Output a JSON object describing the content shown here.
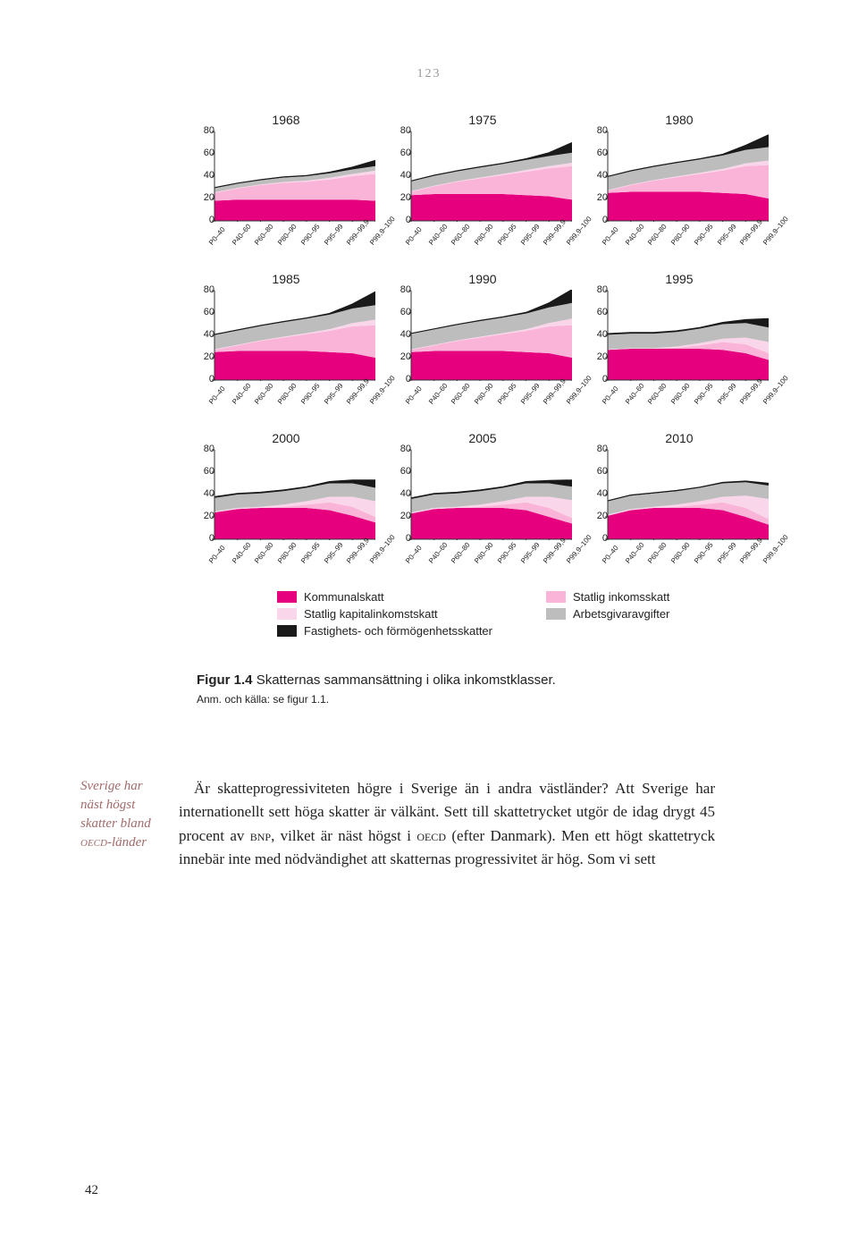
{
  "page_header": "123",
  "page_number": "42",
  "categories": [
    "P0–40",
    "P40–60",
    "P60–80",
    "P80–90",
    "P90–95",
    "P95–99",
    "P99–99,9",
    "P99,9–100"
  ],
  "y_ticks": [
    0,
    20,
    40,
    60,
    80
  ],
  "ylim_max": 80,
  "colors": {
    "kommunalskatt": "#e6007e",
    "statlig_inkomstskatt": "#f9b4d8",
    "statlig_kapital": "#fad6ea",
    "arbetsgivar": "#bdbdbd",
    "fastighets": "#1a1a1a",
    "axis": "#333",
    "bg": "#ffffff"
  },
  "charts": [
    {
      "year": "1968",
      "kommunal": [
        18,
        19,
        19,
        19,
        19,
        19,
        19,
        18
      ],
      "stat_ink": [
        7,
        10,
        13,
        15,
        16,
        18,
        21,
        24
      ],
      "stat_kap": [
        0.5,
        0.5,
        0.5,
        0.8,
        1,
        1.5,
        2,
        3
      ],
      "arbets": [
        4,
        4,
        4,
        4,
        4,
        4,
        4,
        4
      ],
      "fastighets": [
        0.3,
        0.3,
        0.3,
        0.5,
        0.5,
        1,
        2,
        5
      ]
    },
    {
      "year": "1975",
      "kommunal": [
        23,
        24,
        24,
        24,
        24,
        23,
        22,
        19
      ],
      "stat_ink": [
        3,
        7,
        11,
        14,
        17,
        21,
        25,
        30
      ],
      "stat_kap": [
        0.5,
        0.5,
        0.5,
        0.8,
        1,
        1.5,
        2,
        3
      ],
      "arbets": [
        9,
        9,
        9,
        9,
        9,
        9,
        9,
        9
      ],
      "fastighets": [
        0.3,
        0.3,
        0.3,
        0.5,
        0.5,
        1,
        3,
        9
      ]
    },
    {
      "year": "1980",
      "kommunal": [
        25,
        26,
        26,
        26,
        26,
        25,
        24,
        20
      ],
      "stat_ink": [
        2,
        6,
        10,
        13,
        16,
        20,
        25,
        30
      ],
      "stat_kap": [
        0.5,
        0.5,
        0.5,
        0.8,
        1,
        1.5,
        2.5,
        4
      ],
      "arbets": [
        12,
        12,
        12,
        12,
        12,
        12,
        12,
        12
      ],
      "fastighets": [
        0.3,
        0.3,
        0.3,
        0.5,
        0.5,
        1,
        4,
        11
      ]
    },
    {
      "year": "1985",
      "kommunal": [
        25,
        26,
        26,
        26,
        26,
        25,
        24,
        20
      ],
      "stat_ink": [
        2,
        5,
        9,
        12,
        15,
        19,
        24,
        29
      ],
      "stat_kap": [
        0.5,
        0.5,
        0.5,
        0.8,
        1,
        1.5,
        3,
        5
      ],
      "arbets": [
        13,
        13,
        13,
        13,
        13,
        13,
        13,
        13
      ],
      "fastighets": [
        0.3,
        0.3,
        0.3,
        0.5,
        0.5,
        1,
        4,
        12
      ]
    },
    {
      "year": "1990",
      "kommunal": [
        25,
        26,
        26,
        26,
        26,
        25,
        24,
        20
      ],
      "stat_ink": [
        2,
        5,
        9,
        12,
        15,
        19,
        24,
        29
      ],
      "stat_kap": [
        0.5,
        0.5,
        0.5,
        0.8,
        1,
        1.5,
        3,
        6
      ],
      "arbets": [
        14,
        14,
        14,
        14,
        14,
        14,
        14,
        14
      ],
      "fastighets": [
        0.3,
        0.3,
        0.3,
        0.5,
        0.5,
        1,
        4,
        12
      ]
    },
    {
      "year": "1995",
      "kommunal": [
        27,
        28,
        28,
        28,
        28,
        27,
        24,
        18
      ],
      "stat_ink": [
        0,
        0,
        0,
        1,
        3,
        7,
        8,
        6
      ],
      "stat_kap": [
        0.5,
        0.5,
        0.5,
        1,
        2,
        3,
        6,
        10
      ],
      "arbets": [
        13,
        13,
        13,
        13,
        13,
        13,
        13,
        13
      ],
      "fastighets": [
        1,
        1,
        1,
        1,
        1,
        1.5,
        3,
        8
      ]
    },
    {
      "year": "2000",
      "kommunal": [
        24,
        27,
        28,
        28,
        28,
        26,
        21,
        15
      ],
      "stat_ink": [
        0,
        0,
        0,
        1,
        3,
        7,
        8,
        5
      ],
      "stat_kap": [
        1,
        1,
        1,
        2,
        3,
        5,
        9,
        14
      ],
      "arbets": [
        12,
        12,
        12,
        12,
        12,
        12,
        12,
        12
      ],
      "fastighets": [
        1,
        1,
        1,
        1,
        1,
        1.5,
        3,
        7
      ]
    },
    {
      "year": "2005",
      "kommunal": [
        23,
        27,
        28,
        28,
        28,
        26,
        20,
        14
      ],
      "stat_ink": [
        0,
        0,
        0,
        1,
        3,
        7,
        8,
        5
      ],
      "stat_kap": [
        1,
        1,
        1,
        2,
        3,
        5,
        10,
        16
      ],
      "arbets": [
        12,
        12,
        12,
        12,
        12,
        12,
        12,
        12
      ],
      "fastighets": [
        1,
        1,
        1,
        1,
        1,
        1.5,
        2.5,
        6
      ]
    },
    {
      "year": "2010",
      "kommunal": [
        21,
        26,
        28,
        28,
        28,
        26,
        20,
        13
      ],
      "stat_ink": [
        0,
        0,
        0,
        1,
        3,
        7,
        8,
        5
      ],
      "stat_kap": [
        1,
        1,
        1,
        2,
        3,
        5,
        11,
        18
      ],
      "arbets": [
        12,
        12,
        12,
        12,
        12,
        12,
        12,
        12
      ],
      "fastighets": [
        0.5,
        0.5,
        0.5,
        0.6,
        0.6,
        0.8,
        1,
        2
      ]
    }
  ],
  "legend": {
    "left": [
      {
        "key": "kommunalskatt",
        "label": "Kommunalskatt"
      },
      {
        "key": "statlig_kapital",
        "label": "Statlig kapitalinkomstskatt"
      },
      {
        "key": "fastighets",
        "label": "Fastighets- och förmögenhetsskatter"
      }
    ],
    "right": [
      {
        "key": "statlig_inkomstskatt",
        "label": "Statlig inkomsskatt"
      },
      {
        "key": "arbetsgivar",
        "label": "Arbetsgivaravgifter"
      }
    ]
  },
  "figure": {
    "number": "Figur 1.4",
    "title": "Skatternas sammansättning i olika inkomstklasser.",
    "note": "Anm. och källa: se figur 1.1."
  },
  "margin_note": "Sverige har näst högst skatter bland OECD-länder",
  "body": "Är skatteprogressiviteten högre i Sverige än i andra västländer? Att Sverige har internationellt sett höga skatter är välkänt. Sett till skattetrycket utgör de idag drygt 45 procent av BNP, vilket är näst högst i OECD (efter Danmark). Men ett högt skattetryck innebär inte med nödvändighet att skatternas progressivitet är hög. Som vi sett"
}
